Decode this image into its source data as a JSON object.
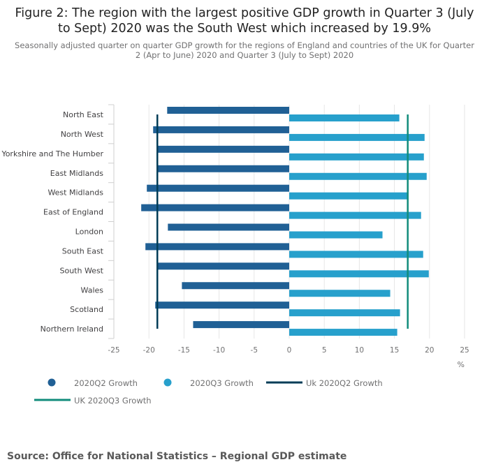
{
  "title": "Figure 2: The region with the largest positive GDP growth in Quarter 3 (July to Sept) 2020 was the South West which increased by 19.9%",
  "subtitle": "Seasonally adjusted quarter on quarter GDP growth for the regions of England and countries of the UK for Quarter 2 (Apr to June) 2020 and Quarter 3 (July to Sept) 2020",
  "source": "Source: Office for National Statistics – Regional GDP estimate",
  "chart_data": {
    "type": "bar",
    "orientation": "horizontal",
    "categories": [
      "North East",
      "North West",
      "Yorkshire and The Humber",
      "East Midlands",
      "West Midlands",
      "East of England",
      "London",
      "South East",
      "South West",
      "Wales",
      "Scotland",
      "Northern Ireland"
    ],
    "series": [
      {
        "name": "2020Q2 Growth",
        "color": "#206095",
        "values": [
          -17.4,
          -19.4,
          -18.8,
          -18.7,
          -20.3,
          -21.1,
          -17.3,
          -20.5,
          -18.9,
          -15.3,
          -19.1,
          -13.7
        ]
      },
      {
        "name": "2020Q3 Growth",
        "color": "#27a0cc",
        "values": [
          15.7,
          19.3,
          19.2,
          19.6,
          17.0,
          18.8,
          13.3,
          19.1,
          19.9,
          14.4,
          15.8,
          15.4
        ]
      }
    ],
    "reference_lines": [
      {
        "name": "Uk 2020Q2 Growth",
        "value": -18.8,
        "color": "#003c57"
      },
      {
        "name": "UK 2020Q3 Growth",
        "value": 16.9,
        "color": "#118c7b"
      }
    ],
    "xlim": [
      -25,
      25
    ],
    "xticks": [
      -25,
      -20,
      -15,
      -10,
      -5,
      0,
      5,
      10,
      15,
      20,
      25
    ],
    "xlabel": "%",
    "grid": true,
    "legend_position": "bottom"
  }
}
